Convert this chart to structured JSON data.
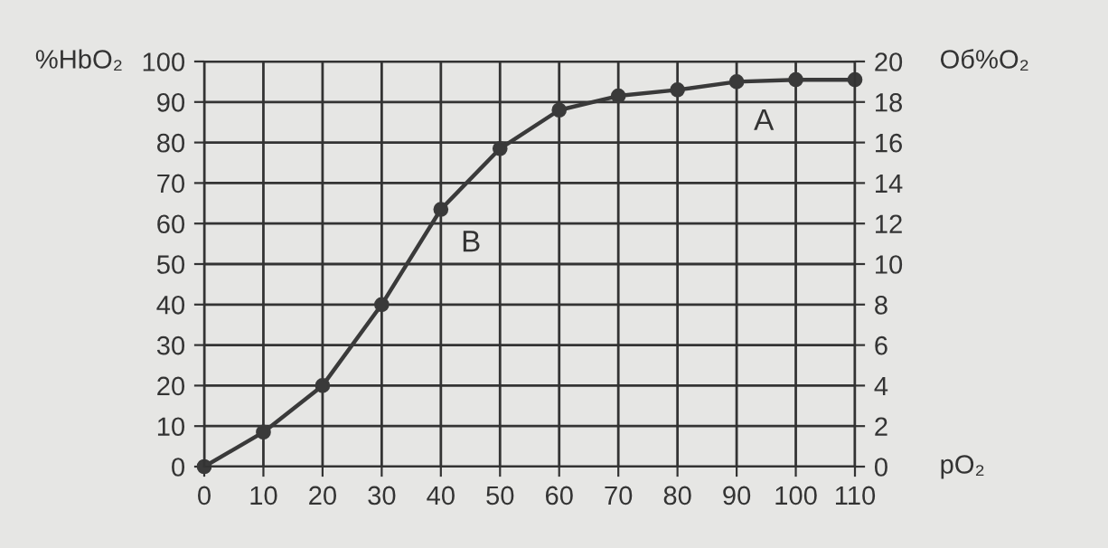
{
  "chart_data": {
    "type": "line",
    "ylabel": "%HbO₂",
    "y2label": "Об%O₂",
    "xlabel": "pO₂",
    "x": [
      0,
      10,
      20,
      30,
      40,
      50,
      60,
      70,
      80,
      90,
      100,
      110
    ],
    "series": [
      {
        "color": "#3a3a3a",
        "values": [
          0,
          8.5,
          20,
          40,
          63.5,
          78.5,
          88,
          91.5,
          93,
          95,
          95.5,
          95.5
        ]
      }
    ],
    "xlim": [
      0,
      110
    ],
    "xticks": [
      0,
      10,
      20,
      30,
      40,
      50,
      60,
      70,
      80,
      90,
      100,
      110
    ],
    "ylim": [
      0,
      100
    ],
    "yticks": [
      0,
      10,
      20,
      30,
      40,
      50,
      60,
      70,
      80,
      90,
      100
    ],
    "y2lim": [
      0,
      20
    ],
    "y2ticks": [
      0,
      2,
      4,
      6,
      8,
      10,
      12,
      14,
      16,
      18,
      20
    ],
    "grid": true,
    "marker": "circle",
    "line_style": "solid",
    "annotations": [
      "A",
      "B"
    ]
  }
}
